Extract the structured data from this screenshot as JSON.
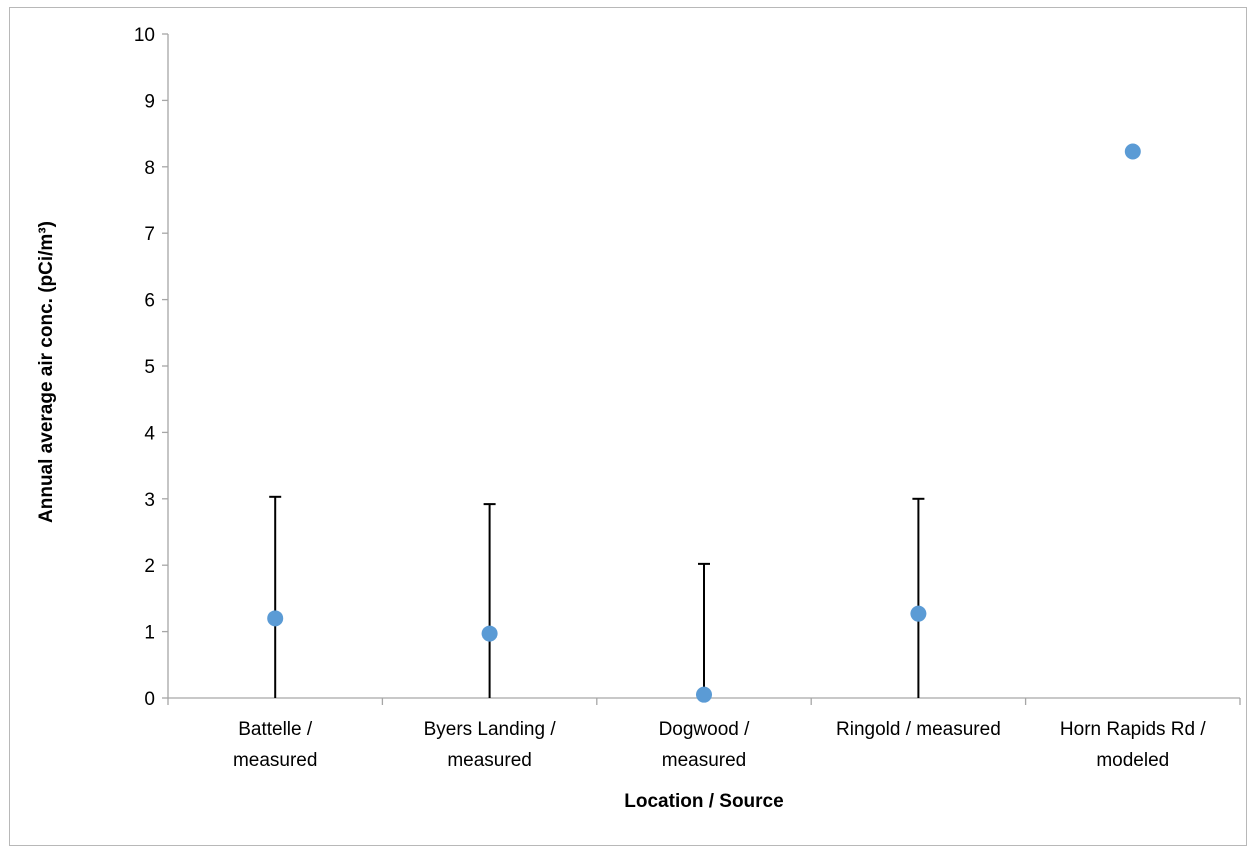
{
  "chart_data": {
    "type": "scatter",
    "title": "",
    "xlabel": "Location / Source",
    "ylabel": "Annual average air conc. (pCi/m³)",
    "ylim": [
      0,
      10
    ],
    "yticks": [
      "0",
      "1",
      "2",
      "3",
      "4",
      "5",
      "6",
      "7",
      "8",
      "9",
      "10"
    ],
    "categories": [
      [
        "Battelle /",
        "measured"
      ],
      [
        "Byers Landing /",
        "measured"
      ],
      [
        "Dogwood /",
        "measured"
      ],
      [
        "Ringold / measured"
      ],
      [
        "Horn Rapids Rd /",
        "modeled"
      ]
    ],
    "values": [
      1.2,
      0.97,
      0.05,
      1.27,
      8.23
    ],
    "error_low": [
      0,
      0,
      0,
      0,
      null
    ],
    "error_high": [
      3.03,
      2.92,
      2.02,
      3.0,
      null
    ],
    "grid": false,
    "legend": "none",
    "marker_color": "#5B9BD5",
    "errorbar_color": "#000000",
    "axis_color": "#A6A6A6"
  }
}
